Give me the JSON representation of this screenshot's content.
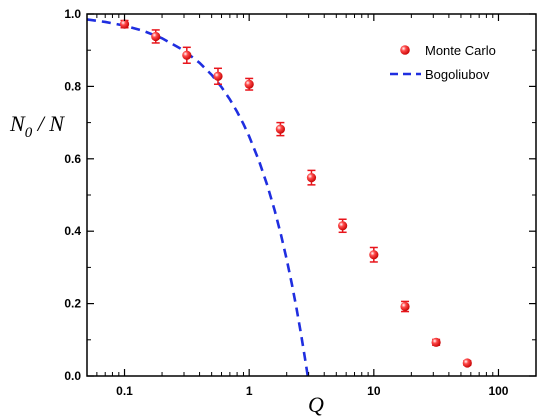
{
  "chart_data": {
    "type": "scatter",
    "xscale": "log",
    "xlim": [
      0.05,
      200
    ],
    "ylim": [
      0.0,
      1.0
    ],
    "xticks": [
      0.1,
      1,
      10,
      100
    ],
    "xtick_labels": [
      "0.1",
      "1",
      "10",
      "100"
    ],
    "yticks": [
      0.0,
      0.2,
      0.4,
      0.6,
      0.8,
      1.0
    ],
    "ytick_labels": [
      "0.0",
      "0.2",
      "0.4",
      "0.6",
      "0.8",
      "1.0"
    ],
    "xlabel": "Q",
    "ylabel_main": "N",
    "ylabel_sub": "0",
    "ylabel_rest": " / N",
    "legend_position": "top-right",
    "series": [
      {
        "name": "Monte Carlo",
        "kind": "points_with_errorbars",
        "color": "#e8141b",
        "x": [
          0.1,
          0.178,
          0.316,
          0.562,
          1.0,
          1.78,
          3.16,
          5.62,
          10.0,
          17.8,
          31.6,
          56.2
        ],
        "y": [
          0.972,
          0.938,
          0.886,
          0.828,
          0.806,
          0.682,
          0.548,
          0.415,
          0.335,
          0.192,
          0.093,
          0.036
        ],
        "err": [
          0.01,
          0.018,
          0.022,
          0.022,
          0.016,
          0.018,
          0.02,
          0.018,
          0.02,
          0.014,
          0.008,
          0.006
        ]
      },
      {
        "name": "Bogoliubov",
        "kind": "dashed_line",
        "color": "#1f2ee0",
        "x": [
          0.05,
          0.07,
          0.1,
          0.14,
          0.2,
          0.3,
          0.4,
          0.5,
          0.6,
          0.7,
          0.8,
          0.9,
          1.0,
          1.2,
          1.4,
          1.6,
          1.8,
          2.0,
          2.2,
          2.4,
          2.6,
          2.8,
          2.95
        ],
        "y": [
          0.985,
          0.978,
          0.968,
          0.954,
          0.933,
          0.899,
          0.865,
          0.832,
          0.798,
          0.764,
          0.73,
          0.696,
          0.662,
          0.594,
          0.526,
          0.458,
          0.39,
          0.322,
          0.254,
          0.186,
          0.118,
          0.05,
          0.0
        ]
      }
    ]
  }
}
